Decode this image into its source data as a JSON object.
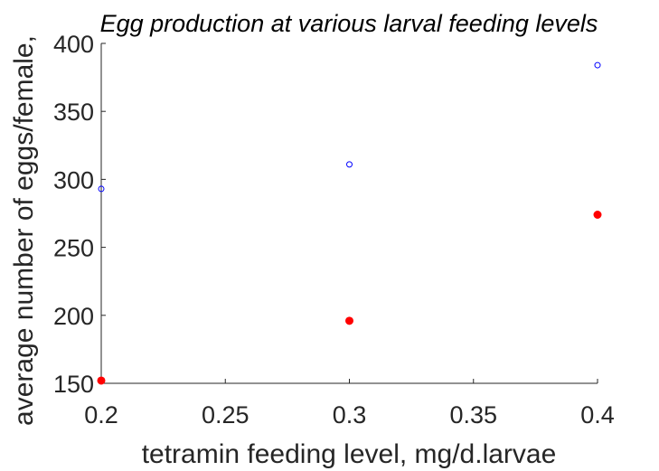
{
  "chart_data": {
    "type": "scatter",
    "title": "Egg production at various larval feeding levels",
    "xlabel": "tetramin feeding level, mg/d.larvae",
    "ylabel": "average number of eggs/female,",
    "xlim": [
      0.2,
      0.4
    ],
    "ylim": [
      150,
      400
    ],
    "xticks": [
      "0.2",
      "0.25",
      "0.3",
      "0.35",
      "0.4"
    ],
    "yticks": [
      "150",
      "200",
      "250",
      "300",
      "350",
      "400"
    ],
    "grid": false,
    "legend": "none",
    "series": [
      {
        "marker": "open-circle",
        "color": "#0000ff",
        "points": [
          {
            "x": 0.2,
            "y": 293
          },
          {
            "x": 0.3,
            "y": 311
          },
          {
            "x": 0.4,
            "y": 384
          }
        ]
      },
      {
        "marker": "filled-circle",
        "color": "#ff0000",
        "points": [
          {
            "x": 0.2,
            "y": 152
          },
          {
            "x": 0.3,
            "y": 196
          },
          {
            "x": 0.4,
            "y": 274
          }
        ]
      }
    ]
  }
}
